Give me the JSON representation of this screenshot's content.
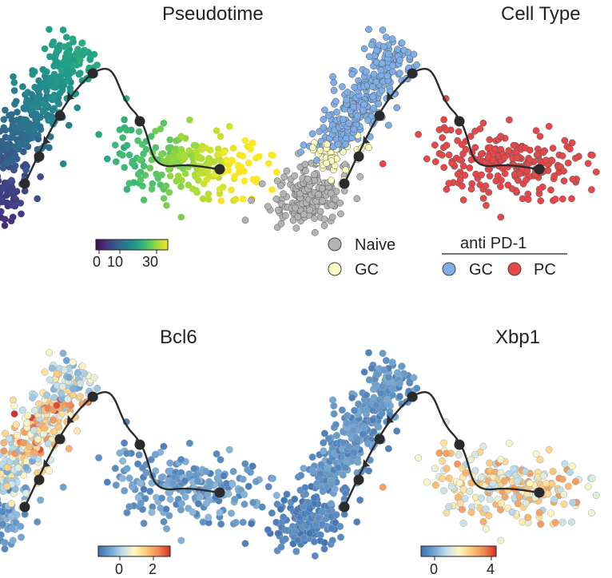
{
  "chart_data": [
    {
      "type": "scatter",
      "title": "Pseudotime",
      "color_by": "pseudotime",
      "colorbar": {
        "ticks": [
          "0",
          "10",
          "30"
        ],
        "range": [
          0,
          35
        ],
        "colors": [
          "#3b0f4f",
          "#46337e",
          "#365c8d",
          "#277f8e",
          "#1fa187",
          "#4ac16d",
          "#9fda3a",
          "#fde725"
        ]
      },
      "clusters": [
        {
          "name": "naive",
          "center": [
            -2.6,
            -1.4
          ],
          "n": 200,
          "value_range": [
            0,
            8
          ]
        },
        {
          "name": "gc",
          "center": [
            -1.5,
            1.3
          ],
          "n": 340,
          "value_range": [
            8,
            20
          ]
        },
        {
          "name": "pc",
          "center": [
            2.2,
            -0.6
          ],
          "n": 230,
          "value_range": [
            20,
            35
          ]
        }
      ],
      "trajectory_nodes": [
        "start",
        "branch-1",
        "branch-2",
        "peak",
        "bend",
        "end"
      ]
    },
    {
      "type": "scatter",
      "title": "Cell Type",
      "color_by": "category",
      "legend": {
        "header": "anti PD-1",
        "entries": [
          {
            "label": "Naive",
            "color": "#b3b3b3"
          },
          {
            "label": "GC",
            "color": "#ffffc2",
            "group": "control"
          },
          {
            "label": "GC",
            "color": "#7eaee8",
            "group": "anti PD-1"
          },
          {
            "label": "PC",
            "color": "#e8474a",
            "group": "anti PD-1"
          }
        ]
      }
    },
    {
      "type": "scatter",
      "title": "Bcl6",
      "color_by": "expression",
      "colorbar": {
        "ticks": [
          "0",
          "2"
        ],
        "range": [
          -1.3,
          3
        ],
        "colors": [
          "#3c6fb0",
          "#6fa3d0",
          "#bcdcec",
          "#fff8c2",
          "#fdc97a",
          "#f48a4e",
          "#d73027"
        ]
      }
    },
    {
      "type": "scatter",
      "title": "Xbp1",
      "color_by": "expression",
      "colorbar": {
        "ticks": [
          "0",
          "4"
        ],
        "range": [
          -1.3,
          5
        ],
        "colors": [
          "#3c6fb0",
          "#6fa3d0",
          "#bcdcec",
          "#fff8c2",
          "#fdc97a",
          "#f48a4e",
          "#d73027"
        ]
      }
    }
  ]
}
